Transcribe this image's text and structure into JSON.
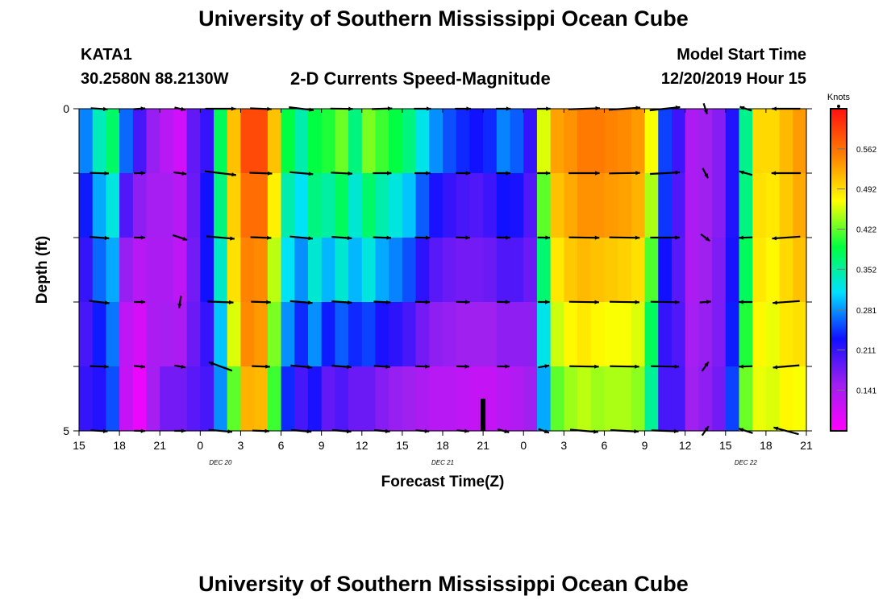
{
  "header": {
    "title_top": "University of Southern Mississippi Ocean Cube",
    "title_bottom": "University of Southern Mississippi Ocean Cube",
    "station": "KATA1",
    "location": "30.2580N 88.2130W",
    "plot_title": "2-D Currents Speed-Magnitude",
    "model_label": "Model Start Time",
    "model_time": "12/20/2019 Hour 15"
  },
  "colors": {
    "palette": [
      "#ff00ff",
      "#a020f0",
      "#1010ff",
      "#00e0ff",
      "#00ff40",
      "#ffff00",
      "#ff7f00",
      "#ff1010"
    ],
    "arrow": "#000000",
    "frame": "#000000"
  },
  "chart_data": {
    "type": "heatmap",
    "title": "2-D Currents Speed-Magnitude",
    "xlabel": "Forecast Time(Z)",
    "ylabel": "Depth (ft)",
    "x_tick_labels": [
      "15",
      "18",
      "21",
      "0",
      "3",
      "6",
      "9",
      "12",
      "15",
      "18",
      "21",
      "0",
      "3",
      "6",
      "9",
      "12",
      "15",
      "18",
      "21"
    ],
    "date_labels": [
      {
        "text": "DEC 20",
        "at_tick": 3.5
      },
      {
        "text": "DEC 21",
        "at_tick": 9
      },
      {
        "text": "DEC 22",
        "at_tick": 16.5
      }
    ],
    "y_range": [
      0,
      5
    ],
    "y_tick_labels": [
      "0",
      "5"
    ],
    "hours": 54,
    "depth_rows": 5,
    "colorbar": {
      "unit": "Knots",
      "min": 0.07,
      "max": 0.632,
      "ticks": [
        0.141,
        0.211,
        0.281,
        0.352,
        0.422,
        0.492,
        0.562
      ]
    },
    "speed_columns": [
      [
        0.3,
        0.25,
        0.22,
        0.2,
        0.2,
        0.22
      ],
      [
        0.38,
        0.3,
        0.28,
        0.25,
        0.22,
        0.22
      ],
      [
        0.4,
        0.35,
        0.3,
        0.28,
        0.26,
        0.25
      ],
      [
        0.32,
        0.21,
        0.18,
        0.13,
        0.12,
        0.12
      ],
      [
        0.22,
        0.18,
        0.14,
        0.12,
        0.09,
        0.08
      ],
      [
        0.16,
        0.15,
        0.14,
        0.14,
        0.14,
        0.15
      ],
      [
        0.11,
        0.15,
        0.14,
        0.14,
        0.15,
        0.2
      ],
      [
        0.08,
        0.14,
        0.12,
        0.13,
        0.15,
        0.2
      ],
      [
        0.18,
        0.19,
        0.17,
        0.18,
        0.18,
        0.2
      ],
      [
        0.2,
        0.22,
        0.24,
        0.22,
        0.2,
        0.2
      ],
      [
        0.38,
        0.38,
        0.35,
        0.32,
        0.28,
        0.28
      ],
      [
        0.52,
        0.5,
        0.5,
        0.48,
        0.44,
        0.4
      ],
      [
        0.6,
        0.58,
        0.55,
        0.55,
        0.54,
        0.5
      ],
      [
        0.6,
        0.58,
        0.55,
        0.54,
        0.53,
        0.5
      ],
      [
        0.52,
        0.5,
        0.46,
        0.44,
        0.42,
        0.4
      ],
      [
        0.42,
        0.36,
        0.33,
        0.3,
        0.26,
        0.22
      ],
      [
        0.36,
        0.33,
        0.3,
        0.26,
        0.22,
        0.18
      ],
      [
        0.4,
        0.38,
        0.35,
        0.31,
        0.25,
        0.2
      ],
      [
        0.42,
        0.38,
        0.32,
        0.27,
        0.2,
        0.17
      ],
      [
        0.45,
        0.4,
        0.36,
        0.3,
        0.22,
        0.17
      ],
      [
        0.38,
        0.35,
        0.31,
        0.28,
        0.2,
        0.16
      ],
      [
        0.46,
        0.4,
        0.35,
        0.3,
        0.2,
        0.16
      ],
      [
        0.44,
        0.38,
        0.31,
        0.27,
        0.18,
        0.15
      ],
      [
        0.42,
        0.36,
        0.29,
        0.26,
        0.17,
        0.14
      ],
      [
        0.4,
        0.33,
        0.27,
        0.24,
        0.16,
        0.14
      ],
      [
        0.35,
        0.29,
        0.23,
        0.2,
        0.15,
        0.13
      ],
      [
        0.31,
        0.25,
        0.2,
        0.18,
        0.14,
        0.12
      ],
      [
        0.28,
        0.23,
        0.19,
        0.17,
        0.14,
        0.12
      ],
      [
        0.26,
        0.22,
        0.18,
        0.17,
        0.13,
        0.12
      ],
      [
        0.25,
        0.21,
        0.18,
        0.17,
        0.13,
        0.11
      ],
      [
        0.26,
        0.22,
        0.19,
        0.17,
        0.13,
        0.11
      ],
      [
        0.3,
        0.25,
        0.21,
        0.18,
        0.14,
        0.12
      ],
      [
        0.28,
        0.24,
        0.21,
        0.18,
        0.14,
        0.13
      ],
      [
        0.22,
        0.2,
        0.19,
        0.17,
        0.15,
        0.15
      ],
      [
        0.48,
        0.44,
        0.4,
        0.34,
        0.3,
        0.28
      ],
      [
        0.54,
        0.52,
        0.5,
        0.47,
        0.44,
        0.4
      ],
      [
        0.55,
        0.53,
        0.52,
        0.49,
        0.46,
        0.42
      ],
      [
        0.56,
        0.55,
        0.53,
        0.5,
        0.47,
        0.43
      ],
      [
        0.56,
        0.55,
        0.53,
        0.49,
        0.46,
        0.42
      ],
      [
        0.56,
        0.54,
        0.53,
        0.48,
        0.46,
        0.43
      ],
      [
        0.55,
        0.54,
        0.52,
        0.48,
        0.46,
        0.43
      ],
      [
        0.54,
        0.53,
        0.51,
        0.47,
        0.45,
        0.42
      ],
      [
        0.48,
        0.46,
        0.43,
        0.4,
        0.36,
        0.35
      ],
      [
        0.25,
        0.25,
        0.24,
        0.22,
        0.2,
        0.2
      ],
      [
        0.21,
        0.2,
        0.19,
        0.19,
        0.2,
        0.2
      ],
      [
        0.14,
        0.14,
        0.14,
        0.14,
        0.15,
        0.15
      ],
      [
        0.15,
        0.15,
        0.15,
        0.15,
        0.16,
        0.16
      ],
      [
        0.17,
        0.16,
        0.17,
        0.17,
        0.17,
        0.18
      ],
      [
        0.22,
        0.22,
        0.22,
        0.23,
        0.24,
        0.26
      ],
      [
        0.36,
        0.36,
        0.37,
        0.39,
        0.41,
        0.44
      ],
      [
        0.5,
        0.49,
        0.49,
        0.48,
        0.47,
        0.46
      ],
      [
        0.5,
        0.49,
        0.48,
        0.47,
        0.46,
        0.46
      ],
      [
        0.52,
        0.51,
        0.5,
        0.49,
        0.48,
        0.47
      ],
      [
        0.54,
        0.53,
        0.52,
        0.5,
        0.48,
        0.46
      ]
    ],
    "vectors": {
      "at_hours": [
        1.5,
        4.5,
        7.5,
        10.5,
        13.5,
        16.5,
        19.5,
        22.5,
        25.5,
        28.5,
        31.5,
        34.5,
        37.5,
        40.5,
        43.5,
        46.5,
        49.5,
        52.5
      ],
      "depths": [
        0,
        1,
        2,
        3,
        4,
        5
      ],
      "direction_deg": [
        [
          94,
          92,
          94,
          97,
          92,
          94
        ],
        [
          86,
          88,
          90,
          90,
          95,
          92
        ],
        [
          103,
          98,
          109,
          189,
          100,
          90
        ],
        [
          90,
          97,
          95,
          92,
          290,
          95
        ],
        [
          92,
          92,
          92,
          92,
          92,
          92
        ],
        [
          97,
          95,
          95,
          95,
          95,
          95
        ],
        [
          91,
          93,
          94,
          94,
          94,
          95
        ],
        [
          88,
          90,
          92,
          93,
          94,
          95
        ],
        [
          90,
          90,
          91,
          91,
          91,
          95
        ],
        [
          90,
          90,
          91,
          91,
          91,
          95
        ],
        [
          90,
          90,
          91,
          91,
          90,
          105
        ],
        [
          90,
          90,
          91,
          90,
          80,
          110
        ],
        [
          88,
          90,
          91,
          91,
          91,
          95
        ],
        [
          86,
          89,
          91,
          91,
          91,
          93
        ],
        [
          84,
          87,
          90,
          91,
          91,
          92
        ],
        [
          162,
          152,
          127,
          85,
          35,
          35
        ],
        [
          288,
          286,
          268,
          270,
          268,
          288
        ],
        [
          270,
          270,
          266,
          266,
          265,
          285
        ]
      ],
      "speed_kn": [
        [
          0.3,
          0.34,
          0.35,
          0.36,
          0.33,
          0.3
        ],
        [
          0.18,
          0.2,
          0.19,
          0.17,
          0.15,
          0.14
        ],
        [
          0.2,
          0.23,
          0.27,
          0.22,
          0.19,
          0.18
        ],
        [
          0.54,
          0.56,
          0.5,
          0.46,
          0.44,
          0.42
        ],
        [
          0.38,
          0.4,
          0.37,
          0.35,
          0.32,
          0.3
        ],
        [
          0.44,
          0.42,
          0.41,
          0.4,
          0.38,
          0.36
        ],
        [
          0.4,
          0.38,
          0.36,
          0.36,
          0.35,
          0.34
        ],
        [
          0.36,
          0.33,
          0.32,
          0.3,
          0.29,
          0.28
        ],
        [
          0.3,
          0.28,
          0.27,
          0.26,
          0.25,
          0.24
        ],
        [
          0.28,
          0.26,
          0.25,
          0.24,
          0.23,
          0.22
        ],
        [
          0.26,
          0.25,
          0.24,
          0.23,
          0.22,
          0.21
        ],
        [
          0.24,
          0.23,
          0.22,
          0.21,
          0.2,
          0.2
        ],
        [
          0.56,
          0.55,
          0.54,
          0.53,
          0.52,
          0.5
        ],
        [
          0.56,
          0.55,
          0.54,
          0.53,
          0.52,
          0.5
        ],
        [
          0.54,
          0.53,
          0.52,
          0.51,
          0.5,
          0.48
        ],
        [
          0.14,
          0.15,
          0.16,
          0.17,
          0.18,
          0.18
        ],
        [
          0.22,
          0.24,
          0.24,
          0.24,
          0.24,
          0.26
        ],
        [
          0.5,
          0.52,
          0.5,
          0.48,
          0.47,
          0.46
        ]
      ]
    },
    "marker": {
      "at_hour": 30,
      "depth_from": 4.5,
      "depth_to": 5
    }
  }
}
